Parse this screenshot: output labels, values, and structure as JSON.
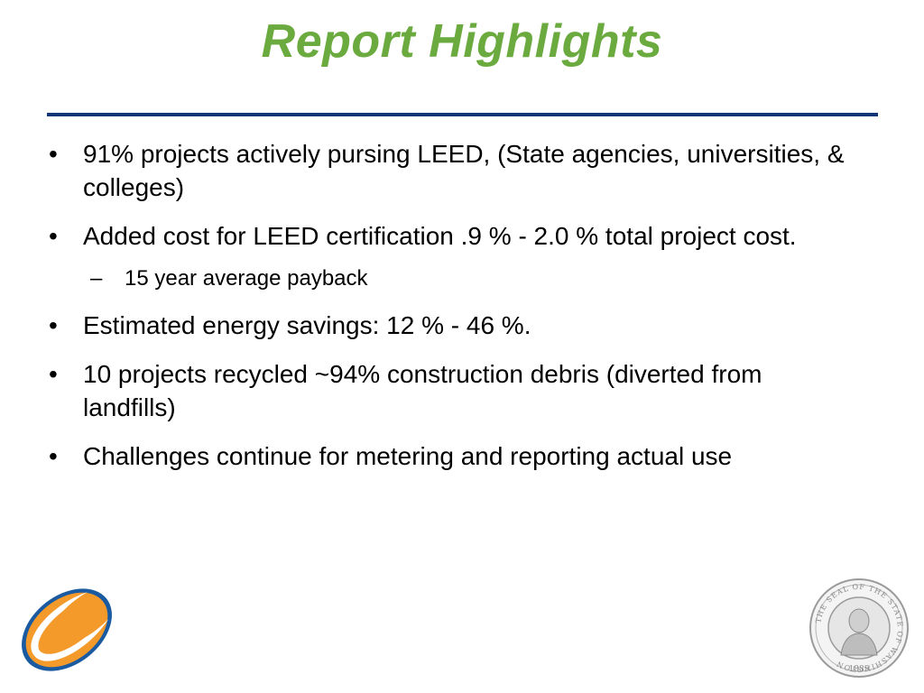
{
  "slide": {
    "title": "Report Highlights",
    "bullets": [
      {
        "text": "91% projects actively pursing LEED, (State agencies, universities, & colleges)"
      },
      {
        "text": "Added cost for LEED certification  .9 %  -  2.0 % total project cost."
      },
      {
        "text": "Estimated energy savings: 12 %  -  46 %."
      },
      {
        "text": "10 projects recycled ~94%  construction debris (diverted from landfills)"
      },
      {
        "text": "Challenges continue for metering and reporting actual use"
      }
    ],
    "sub_bullets": [
      {
        "text": "15 year average payback"
      }
    ],
    "bullet_marker": "•",
    "sub_marker": "–"
  },
  "seal": {
    "ring_text": "THE SEAL OF THE STATE OF WASHINGTON",
    "year": "1889"
  },
  "colors": {
    "title": "#6aaa3e",
    "rule": "#12357a",
    "logo_orange": "#f39a2b",
    "logo_blue": "#1a5aa0"
  },
  "icons": {
    "logo": "orange-swoosh-logo",
    "seal": "washington-state-seal"
  }
}
